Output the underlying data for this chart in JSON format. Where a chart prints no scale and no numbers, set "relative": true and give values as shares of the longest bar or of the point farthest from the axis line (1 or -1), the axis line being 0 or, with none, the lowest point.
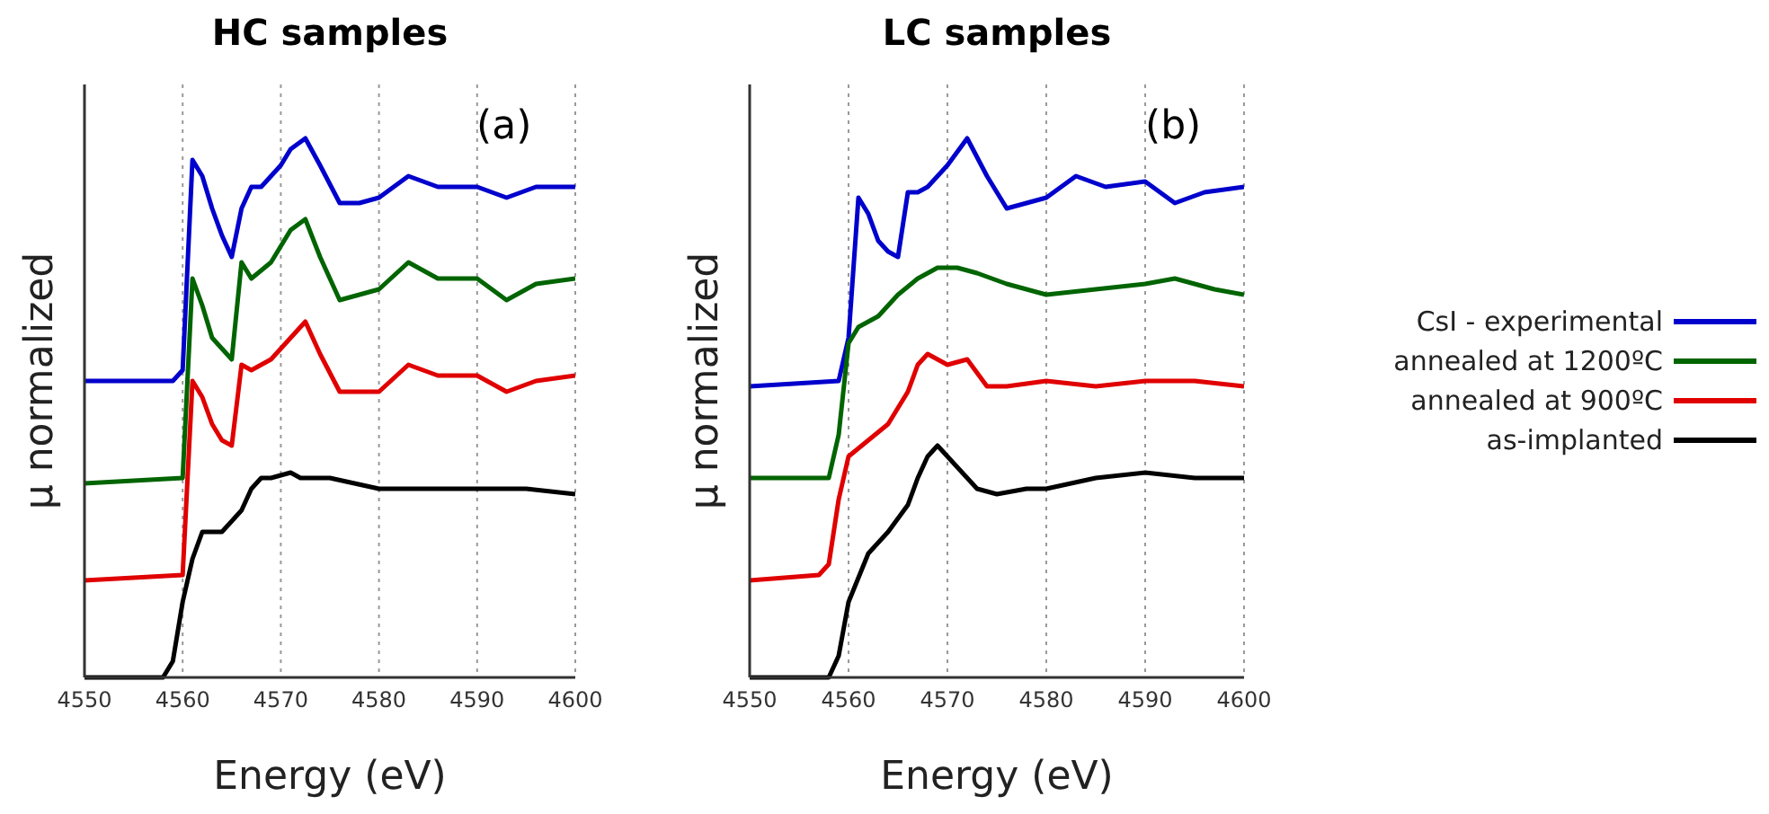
{
  "chart_data": [
    {
      "type": "line",
      "title": "HC samples",
      "xlabel": "Energy (eV)",
      "ylabel": "μ normalized",
      "annotations": [
        "(a)"
      ],
      "relative": true,
      "xlim": [
        4550,
        4600
      ],
      "xticks": [
        4550,
        4560,
        4570,
        4580,
        4590,
        4600
      ],
      "tick_labels": "x",
      "grid": "x",
      "legend": false,
      "line_style": "solid",
      "series": [
        {
          "color": "#0000cc",
          "x": [
            4550,
            4559,
            4560,
            4561,
            4562,
            4563,
            4564,
            4565,
            4566,
            4567,
            4568,
            4570,
            4571,
            4572.5,
            4574,
            4576,
            4578,
            4580,
            4583,
            4586,
            4590,
            4593,
            4596,
            4600
          ],
          "values": [
            0.55,
            0.55,
            0.57,
            0.96,
            0.93,
            0.87,
            0.82,
            0.78,
            0.87,
            0.91,
            0.91,
            0.95,
            0.98,
            1,
            0.95,
            0.88,
            0.88,
            0.89,
            0.93,
            0.91,
            0.91,
            0.89,
            0.91,
            0.91
          ]
        },
        {
          "color": "#006400",
          "x": [
            4550,
            4560,
            4561,
            4562,
            4563,
            4564,
            4565,
            4566,
            4567,
            4569,
            4571,
            4572.5,
            4574,
            4576,
            4578,
            4580,
            4583,
            4586,
            4590,
            4593,
            4596,
            4600
          ],
          "values": [
            0.36,
            0.37,
            0.74,
            0.69,
            0.63,
            0.61,
            0.59,
            0.77,
            0.74,
            0.77,
            0.83,
            0.85,
            0.78,
            0.7,
            0.71,
            0.72,
            0.77,
            0.74,
            0.74,
            0.7,
            0.73,
            0.74
          ]
        },
        {
          "color": "#e00000",
          "x": [
            4550,
            4560,
            4561,
            4562,
            4563,
            4564,
            4565,
            4566,
            4567,
            4569,
            4571,
            4572.5,
            4574,
            4576,
            4578,
            4580,
            4583,
            4586,
            4590,
            4593,
            4596,
            4600
          ],
          "values": [
            0.18,
            0.19,
            0.55,
            0.52,
            0.47,
            0.44,
            0.43,
            0.58,
            0.57,
            0.59,
            0.63,
            0.66,
            0.6,
            0.53,
            0.53,
            0.53,
            0.58,
            0.56,
            0.56,
            0.53,
            0.55,
            0.56
          ]
        },
        {
          "color": "#000000",
          "x": [
            4550,
            4558,
            4559,
            4560,
            4561,
            4562,
            4564,
            4566,
            4567,
            4568,
            4569,
            4571,
            4572,
            4575,
            4580,
            4585,
            4590,
            4595,
            4600
          ],
          "values": [
            0,
            0,
            0.03,
            0.14,
            0.22,
            0.27,
            0.27,
            0.31,
            0.35,
            0.37,
            0.37,
            0.38,
            0.37,
            0.37,
            0.35,
            0.35,
            0.35,
            0.35,
            0.34
          ]
        }
      ]
    },
    {
      "type": "line",
      "title": "LC samples",
      "xlabel": "Energy (eV)",
      "ylabel": "μ normalized",
      "annotations": [
        "(b)"
      ],
      "relative": true,
      "xlim": [
        4550,
        4600
      ],
      "xticks": [
        4550,
        4560,
        4570,
        4580,
        4590,
        4600
      ],
      "tick_labels": "x",
      "grid": "x",
      "legend": "right",
      "line_style": "solid",
      "series": [
        {
          "name": "CsI - experimental",
          "color": "#0000cc",
          "x": [
            4550,
            4559,
            4560,
            4561,
            4562,
            4563,
            4564,
            4565,
            4566,
            4567,
            4568,
            4570,
            4572,
            4574,
            4576,
            4578,
            4580,
            4583,
            4586,
            4590,
            4593,
            4596,
            4600
          ],
          "values": [
            0.54,
            0.55,
            0.63,
            0.89,
            0.86,
            0.81,
            0.79,
            0.78,
            0.9,
            0.9,
            0.91,
            0.95,
            1,
            0.93,
            0.87,
            0.88,
            0.89,
            0.93,
            0.91,
            0.92,
            0.88,
            0.9,
            0.91
          ]
        },
        {
          "name": "annealed at 1200ºC",
          "color": "#006400",
          "x": [
            4550,
            4558,
            4559,
            4560,
            4561,
            4563,
            4565,
            4567,
            4569,
            4571,
            4573,
            4576,
            4580,
            4585,
            4590,
            4593,
            4597,
            4600
          ],
          "values": [
            0.37,
            0.37,
            0.45,
            0.62,
            0.65,
            0.67,
            0.71,
            0.74,
            0.76,
            0.76,
            0.75,
            0.73,
            0.71,
            0.72,
            0.73,
            0.74,
            0.72,
            0.71
          ]
        },
        {
          "name": "annealed at 900ºC",
          "color": "#e00000",
          "x": [
            4550,
            4557,
            4558,
            4559,
            4560,
            4562,
            4564,
            4566,
            4567,
            4568,
            4570,
            4572,
            4574,
            4576,
            4580,
            4585,
            4590,
            4595,
            4600
          ],
          "values": [
            0.18,
            0.19,
            0.21,
            0.33,
            0.41,
            0.44,
            0.47,
            0.53,
            0.58,
            0.6,
            0.58,
            0.59,
            0.54,
            0.54,
            0.55,
            0.54,
            0.55,
            0.55,
            0.54
          ]
        },
        {
          "name": "as-implanted",
          "color": "#000000",
          "x": [
            4550,
            4558,
            4559,
            4560,
            4562,
            4564,
            4566,
            4567,
            4568,
            4569,
            4570,
            4572,
            4573,
            4575,
            4578,
            4580,
            4585,
            4590,
            4595,
            4600
          ],
          "values": [
            0,
            0,
            0.04,
            0.14,
            0.23,
            0.27,
            0.32,
            0.37,
            0.41,
            0.43,
            0.41,
            0.37,
            0.35,
            0.34,
            0.35,
            0.35,
            0.37,
            0.38,
            0.37,
            0.37
          ]
        }
      ]
    }
  ]
}
